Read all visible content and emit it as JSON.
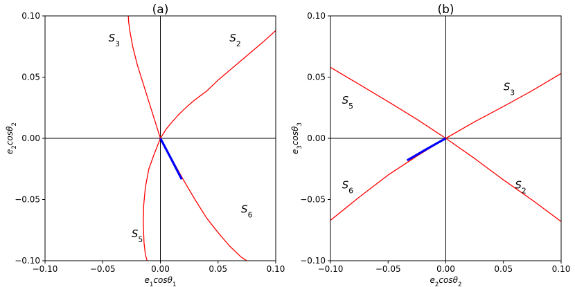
{
  "chart_data": [
    {
      "type": "line",
      "title": "(a)",
      "xlabel": "e₁cosθ₁",
      "ylabel": "e₂cosθ₂",
      "xlim": [
        -0.1,
        0.1
      ],
      "ylim": [
        -0.1,
        0.1
      ],
      "xticks": [
        -0.1,
        -0.05,
        0.0,
        0.05,
        0.1
      ],
      "yticks": [
        -0.1,
        -0.05,
        0.0,
        0.05,
        0.1
      ],
      "xtick_labels": [
        "−0.10",
        "−0.05",
        "0.00",
        "0.05",
        "0.10"
      ],
      "ytick_labels": [
        "−0.10",
        "−0.05",
        "0.00",
        "0.05",
        "0.10"
      ],
      "grid": false,
      "region_labels": [
        {
          "text": "S₃",
          "x": -0.045,
          "y": 0.082
        },
        {
          "text": "S₂",
          "x": 0.06,
          "y": 0.082
        },
        {
          "text": "S₆",
          "x": 0.07,
          "y": -0.058
        },
        {
          "text": "S₅",
          "x": -0.025,
          "y": -0.078
        }
      ],
      "series": [
        {
          "color": "#ff0000",
          "width": 1.3,
          "x": [
            0.0,
            0.005,
            0.01,
            0.015,
            0.02,
            0.025,
            0.03,
            0.035,
            0.04,
            0.05,
            0.06,
            0.07,
            0.08,
            0.09,
            0.1
          ],
          "y": [
            0.0,
            0.0075,
            0.0132,
            0.0185,
            0.0232,
            0.0275,
            0.0315,
            0.035,
            0.0385,
            0.0475,
            0.0555,
            0.0635,
            0.0715,
            0.0795,
            0.088
          ]
        },
        {
          "color": "#ff0000",
          "width": 1.3,
          "x": [
            0.0,
            -0.005,
            -0.01,
            -0.015,
            -0.02,
            -0.024,
            -0.0265,
            -0.0275,
            -0.0278
          ],
          "y": [
            0.0,
            0.015,
            0.03,
            0.045,
            0.06,
            0.075,
            0.088,
            0.095,
            0.1
          ]
        },
        {
          "color": "#ff0000",
          "width": 1.3,
          "x": [
            0.0,
            -0.005,
            -0.01,
            -0.013,
            -0.0145,
            -0.0148,
            -0.0142,
            -0.013,
            -0.0115
          ],
          "y": [
            0.0,
            -0.012,
            -0.025,
            -0.04,
            -0.055,
            -0.07,
            -0.085,
            -0.095,
            -0.1
          ]
        },
        {
          "color": "#ff0000",
          "width": 1.3,
          "x": [
            0.0,
            0.01,
            0.02,
            0.03,
            0.04,
            0.05,
            0.06,
            0.07,
            0.075
          ],
          "y": [
            0.0,
            -0.017,
            -0.034,
            -0.05,
            -0.065,
            -0.077,
            -0.088,
            -0.097,
            -0.1
          ]
        },
        {
          "color": "#0000ff",
          "width": 3.2,
          "x": [
            0.0,
            0.0095,
            0.0185
          ],
          "y": [
            0.0,
            -0.017,
            -0.0335
          ]
        }
      ]
    },
    {
      "type": "line",
      "title": "(b)",
      "xlabel": "e₂cosθ₂",
      "ylabel": "e₃cosθ₃",
      "xlim": [
        -0.1,
        0.1
      ],
      "ylim": [
        -0.1,
        0.1
      ],
      "xticks": [
        -0.1,
        -0.05,
        0.0,
        0.05,
        0.1
      ],
      "yticks": [
        -0.1,
        -0.05,
        0.0,
        0.05,
        0.1
      ],
      "xtick_labels": [
        "−0.10",
        "−0.05",
        "0.00",
        "0.05",
        "0.10"
      ],
      "ytick_labels": [
        "−0.10",
        "−0.05",
        "0.00",
        "0.05",
        "0.10"
      ],
      "grid": false,
      "region_labels": [
        {
          "text": "S₅",
          "x": -0.09,
          "y": 0.031
        },
        {
          "text": "S₃",
          "x": 0.05,
          "y": 0.042
        },
        {
          "text": "S₆",
          "x": -0.09,
          "y": -0.038
        },
        {
          "text": "S₂",
          "x": 0.06,
          "y": -0.038
        }
      ],
      "series": [
        {
          "color": "#ff0000",
          "width": 1.3,
          "x": [
            -0.1,
            -0.075,
            -0.05,
            -0.025,
            0.0,
            0.025,
            0.05,
            0.075,
            0.1
          ],
          "y": [
            0.058,
            0.044,
            0.03,
            0.0155,
            0.0,
            -0.0165,
            -0.034,
            -0.0505,
            -0.068
          ]
        },
        {
          "color": "#ff0000",
          "width": 1.3,
          "x": [
            -0.1,
            -0.075,
            -0.05,
            -0.025,
            0.0,
            0.025,
            0.05,
            0.075,
            0.1
          ],
          "y": [
            -0.067,
            -0.048,
            -0.03,
            -0.0145,
            0.0,
            0.0135,
            0.026,
            0.039,
            0.053
          ]
        },
        {
          "color": "#0000ff",
          "width": 3.2,
          "x": [
            0.0,
            -0.017,
            -0.0335
          ],
          "y": [
            0.0,
            -0.009,
            -0.018
          ]
        }
      ]
    }
  ]
}
